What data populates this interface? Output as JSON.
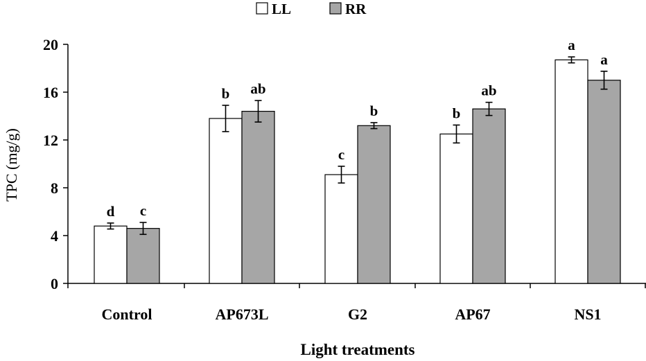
{
  "chart_data": {
    "type": "bar",
    "title": "",
    "xlabel": "Light treatments",
    "ylabel": "TPC (mg/g)",
    "ylim": [
      0,
      20
    ],
    "yticks": [
      0,
      4,
      8,
      12,
      16,
      20
    ],
    "grid": false,
    "legend_position": "top-center",
    "categories": [
      "Control",
      "AP673L",
      "G2",
      "AP67",
      "NS1"
    ],
    "series": [
      {
        "name": "LL",
        "color": "#ffffff",
        "values": [
          4.8,
          13.8,
          9.1,
          12.5,
          18.7
        ],
        "errors": [
          0.25,
          1.1,
          0.7,
          0.75,
          0.25
        ],
        "significance": [
          "d",
          "b",
          "c",
          "b",
          "a"
        ]
      },
      {
        "name": "RR",
        "color": "#a6a6a6",
        "values": [
          4.6,
          14.4,
          13.2,
          14.6,
          17.0
        ],
        "errors": [
          0.5,
          0.9,
          0.25,
          0.55,
          0.75
        ],
        "significance": [
          "c",
          "ab",
          "b",
          "ab",
          "a"
        ]
      }
    ]
  }
}
